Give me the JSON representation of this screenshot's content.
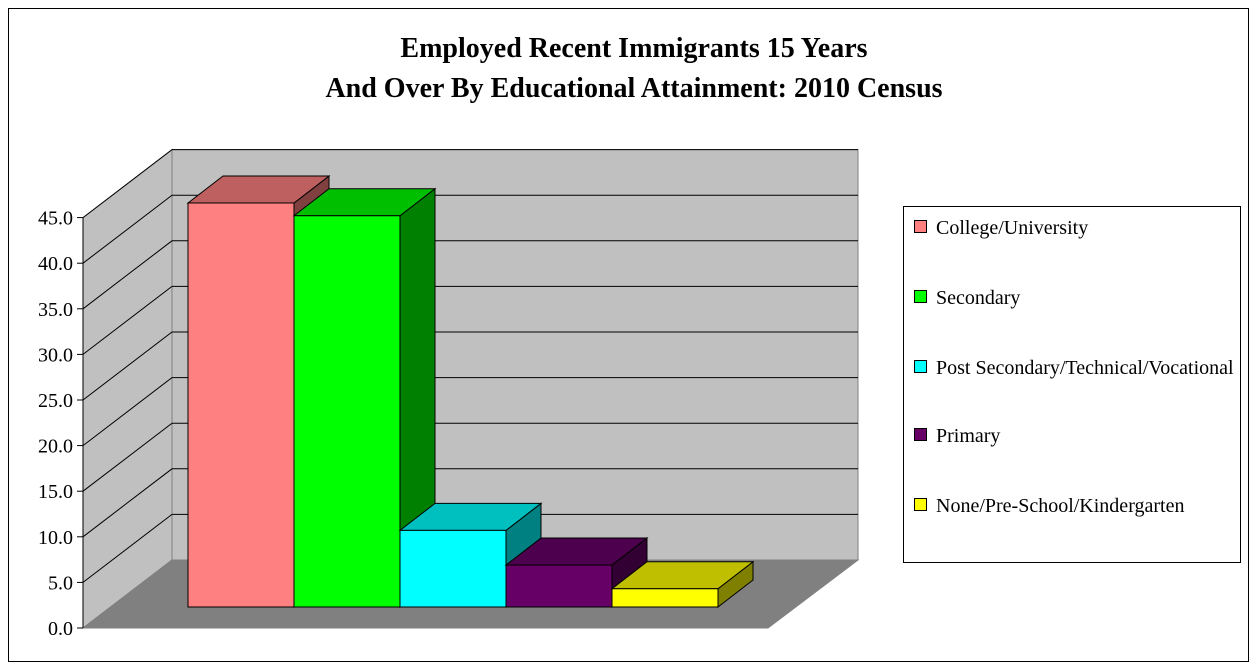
{
  "chart_data": {
    "type": "bar",
    "title_lines": [
      "Employed Recent Immigrants 15 Years",
      "And Over By Educational Attainment:  2010 Census"
    ],
    "categories": [
      "College/University",
      "Secondary",
      "Post Secondary/Technical/Vocational",
      "Primary",
      "None/Pre-School/Kindergarten"
    ],
    "values": [
      44.3,
      42.9,
      8.4,
      4.6,
      2.0
    ],
    "colors": [
      "#FF8080",
      "#00FF00",
      "#00FFFF",
      "#660066",
      "#FFFF00"
    ],
    "ylim": [
      0,
      45
    ],
    "yticks": [
      "0.0",
      "5.0",
      "10.0",
      "15.0",
      "20.0",
      "25.0",
      "30.0",
      "35.0",
      "40.0",
      "45.0"
    ],
    "three_d": true,
    "wall_color": "#C0C0C0",
    "floor_color": "#808080",
    "grid": true,
    "legend_position": "right"
  },
  "legend": {
    "items": [
      {
        "label": "College/University",
        "color": "#FF8080"
      },
      {
        "label": "Secondary",
        "color": "#00FF00"
      },
      {
        "label": "Post Secondary/Technical/Vocational",
        "color": "#00FFFF"
      },
      {
        "label": "Primary",
        "color": "#660066"
      },
      {
        "label": "None/Pre-School/Kindergarten",
        "color": "#FFFF00"
      }
    ]
  }
}
